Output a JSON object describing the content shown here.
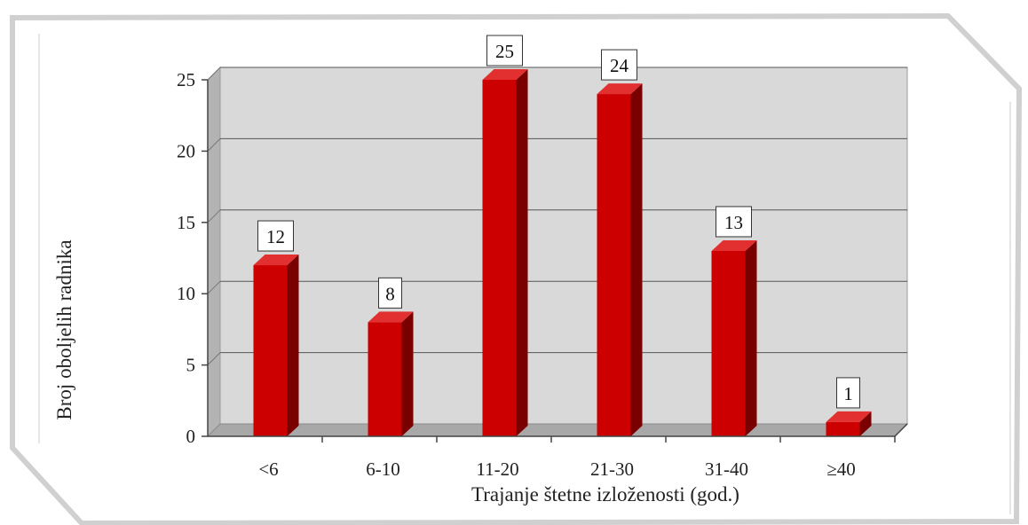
{
  "chart_data": {
    "type": "bar",
    "categories": [
      "<6",
      "6-10",
      "11-20",
      "21-30",
      "31-40",
      "≥40"
    ],
    "values": [
      12,
      8,
      25,
      24,
      13,
      1
    ],
    "title": "",
    "xlabel": "Trajanje štetne izloženosti (god.)",
    "ylabel": "Broj oboljelih radnika",
    "ylim": [
      0,
      25
    ],
    "yticks": [
      0,
      5,
      10,
      15,
      20,
      25
    ],
    "grid": true,
    "bar_color": "#cc0000",
    "bar_side_color": "#7a0000",
    "bar_top_color": "#e23030",
    "plot_bg": "#d9d9d9",
    "data_labels": true
  }
}
